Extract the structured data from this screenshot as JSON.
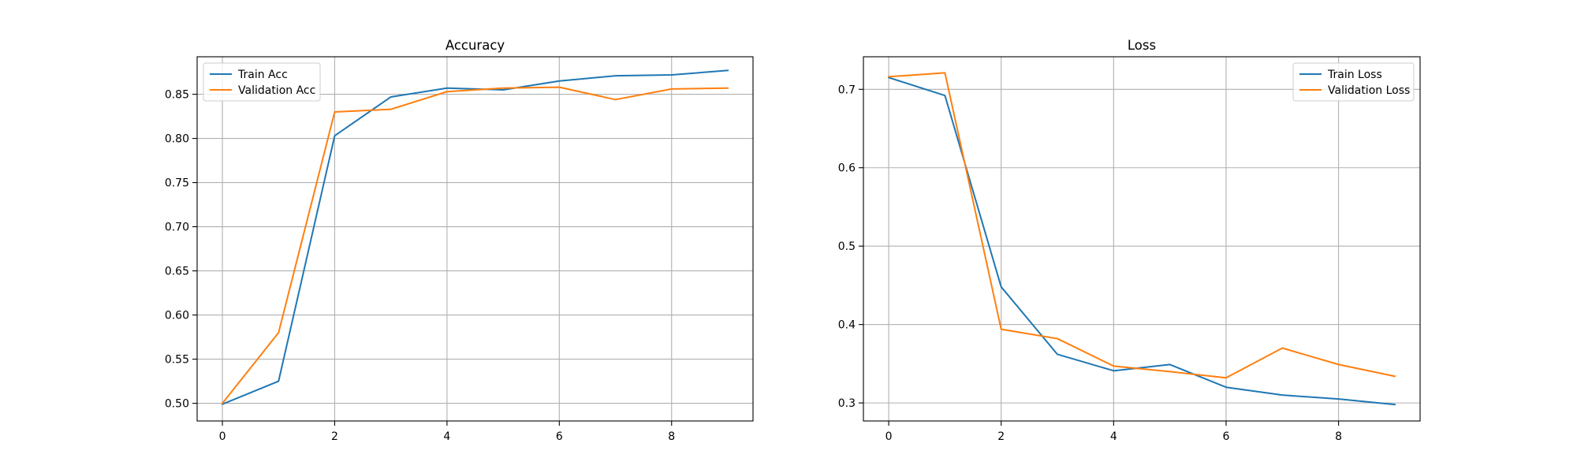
{
  "chart_data": [
    {
      "type": "line",
      "title": "Accuracy",
      "xlabel": "",
      "ylabel": "",
      "x": [
        0,
        1,
        2,
        3,
        4,
        5,
        6,
        7,
        8,
        9
      ],
      "xlim": [
        -0.45,
        9.45
      ],
      "ylim": [
        0.48,
        0.8925
      ],
      "xticks": [
        0,
        2,
        4,
        6,
        8
      ],
      "xtick_labels": [
        "0",
        "2",
        "4",
        "6",
        "8"
      ],
      "yticks": [
        0.5,
        0.55,
        0.6,
        0.65,
        0.7,
        0.75,
        0.8,
        0.85
      ],
      "ytick_labels": [
        "0.50",
        "0.55",
        "0.60",
        "0.65",
        "0.70",
        "0.75",
        "0.80",
        "0.85"
      ],
      "grid": true,
      "legend_position": "upper-left",
      "series": [
        {
          "name": "Train Acc",
          "color": "#1f77b4",
          "values": [
            0.499,
            0.525,
            0.803,
            0.847,
            0.857,
            0.855,
            0.865,
            0.871,
            0.872,
            0.877
          ]
        },
        {
          "name": "Validation Acc",
          "color": "#ff7f0e",
          "values": [
            0.5,
            0.58,
            0.83,
            0.833,
            0.853,
            0.857,
            0.858,
            0.844,
            0.856,
            0.857
          ]
        }
      ]
    },
    {
      "type": "line",
      "title": "Loss",
      "xlabel": "",
      "ylabel": "",
      "x": [
        0,
        1,
        2,
        3,
        4,
        5,
        6,
        7,
        8,
        9
      ],
      "xlim": [
        -0.45,
        9.45
      ],
      "ylim": [
        0.277,
        0.7415
      ],
      "xticks": [
        0,
        2,
        4,
        6,
        8
      ],
      "xtick_labels": [
        "0",
        "2",
        "4",
        "6",
        "8"
      ],
      "yticks": [
        0.3,
        0.4,
        0.5,
        0.6,
        0.7
      ],
      "ytick_labels": [
        "0.3",
        "0.4",
        "0.5",
        "0.6",
        "0.7"
      ],
      "grid": true,
      "legend_position": "upper-right",
      "series": [
        {
          "name": "Train Loss",
          "color": "#1f77b4",
          "values": [
            0.715,
            0.692,
            0.448,
            0.362,
            0.341,
            0.349,
            0.32,
            0.31,
            0.305,
            0.298
          ]
        },
        {
          "name": "Validation Loss",
          "color": "#ff7f0e",
          "values": [
            0.716,
            0.721,
            0.394,
            0.382,
            0.347,
            0.34,
            0.332,
            0.37,
            0.349,
            0.334
          ]
        }
      ]
    }
  ]
}
